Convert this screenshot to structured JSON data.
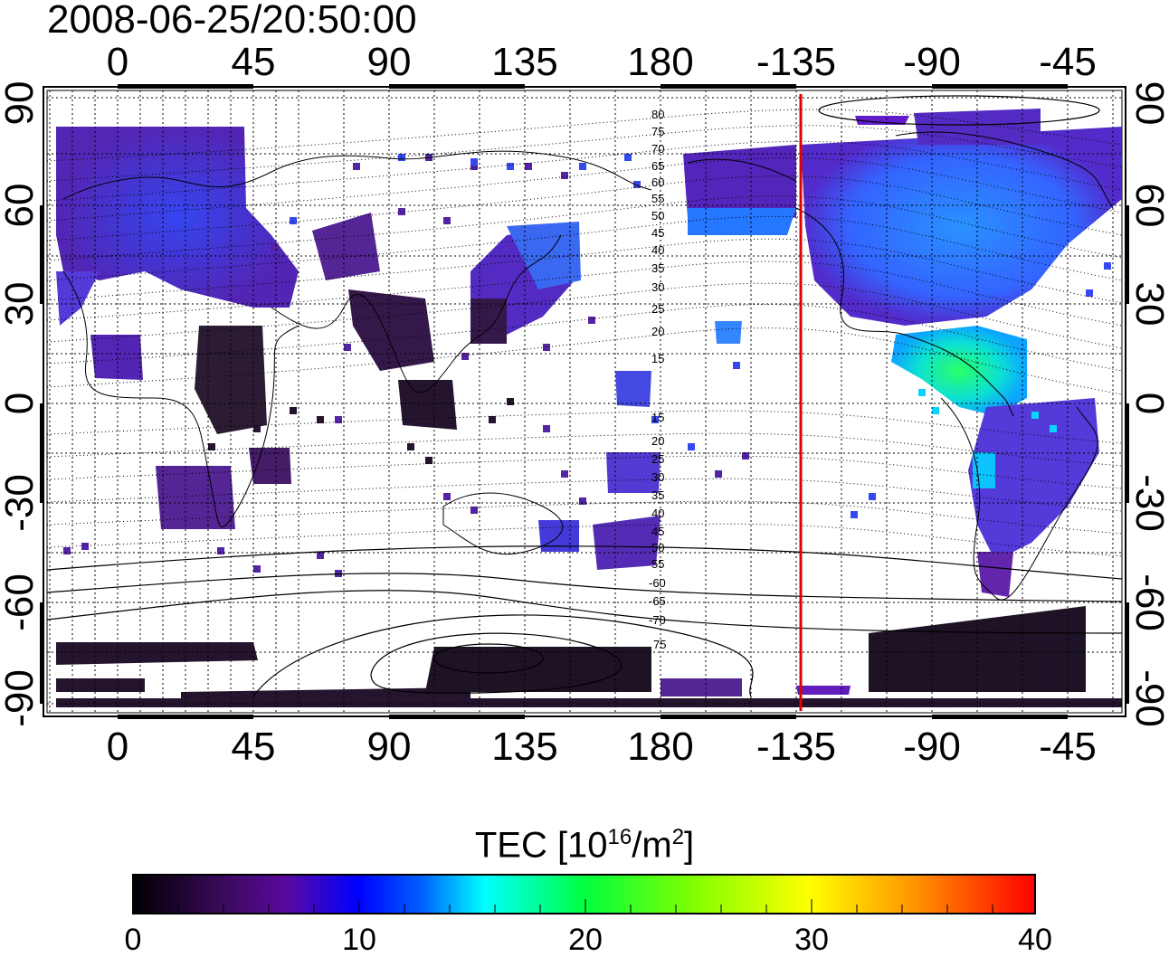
{
  "timestamp": "2008-06-25/20:50:00",
  "map": {
    "top_lon_labels": [
      "0",
      "45",
      "90",
      "135",
      "180",
      "-135",
      "-90",
      "-45"
    ],
    "bottom_lon_labels": [
      "0",
      "45",
      "90",
      "135",
      "180",
      "-135",
      "-90",
      "-45"
    ],
    "left_lat_labels": [
      "90",
      "60",
      "30",
      "0",
      "-30",
      "-60",
      "-90"
    ],
    "right_lat_labels": [
      "90",
      "60",
      "30",
      "0",
      "-30",
      "-60",
      "-90"
    ],
    "contour_labels_north": [
      "80",
      "75",
      "70",
      "65",
      "60",
      "55",
      "50",
      "45",
      "40",
      "35",
      "30",
      "25",
      "20",
      "15"
    ],
    "contour_labels_south": [
      "15",
      "20",
      "25",
      "30",
      "35",
      "40",
      "45",
      "50",
      "55",
      "-60",
      "-65",
      "-70",
      "75"
    ],
    "terminator_line_color": "#e00000"
  },
  "colorbar": {
    "title": "TEC  [10",
    "title_exp": "16",
    "title_unit": "/m",
    "title_unit_exp": "2",
    "title_close": "]",
    "tick_labels": [
      "0",
      "10",
      "20",
      "30",
      "40"
    ],
    "colors": [
      "#000000",
      "#3a0a5c",
      "#5a0aa0",
      "#0000ff",
      "#00a0ff",
      "#00ffff",
      "#00ff40",
      "#80ff00",
      "#ffff00",
      "#ff9000",
      "#ff0000"
    ]
  }
}
